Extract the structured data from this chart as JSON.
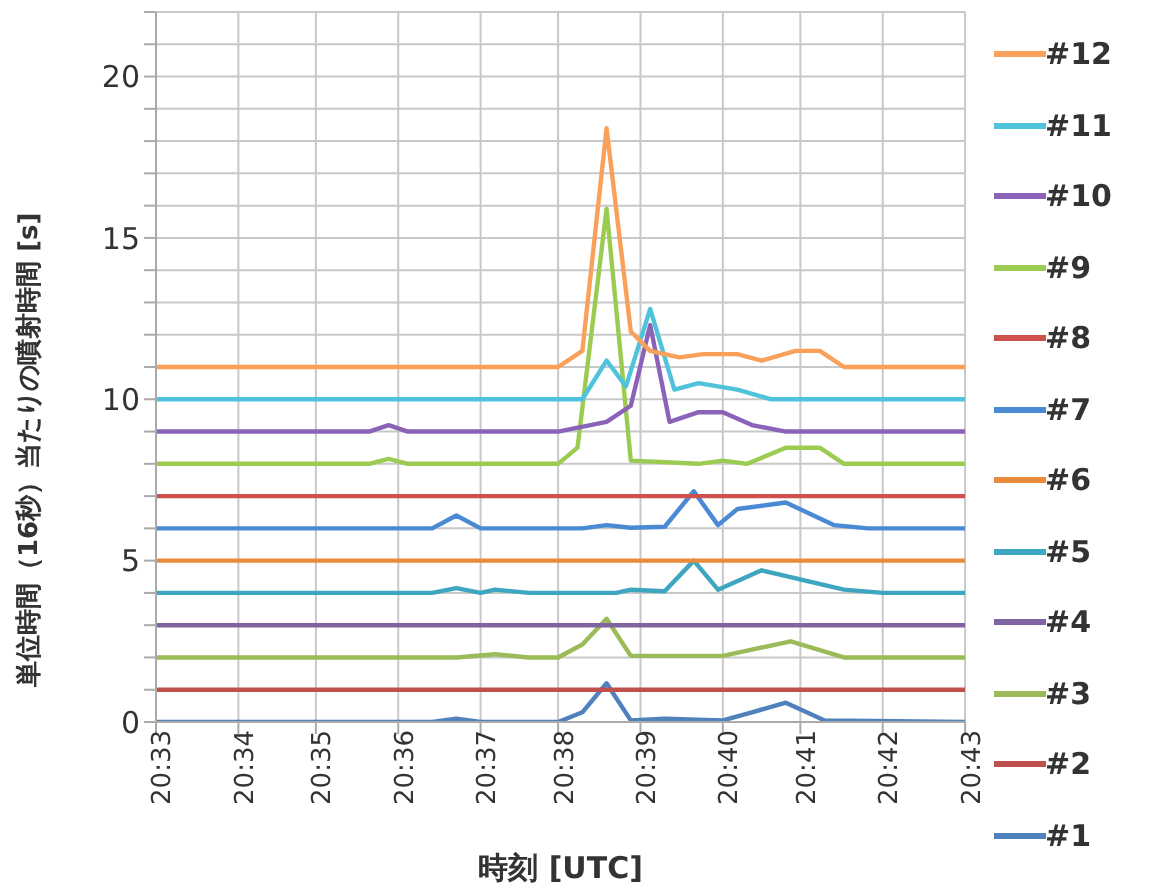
{
  "chart_data": {
    "type": "line",
    "xlabel": "時刻 [UTC]",
    "ylabel": "単位時間（16秒）当たりの噴射時間 [s]",
    "xlim": [
      20.55,
      20.717
    ],
    "xticks": [
      {
        "value": 20.55,
        "label": "20:33"
      },
      {
        "value": 20.567,
        "label": "20:34"
      },
      {
        "value": 20.583,
        "label": "20:35"
      },
      {
        "value": 20.6,
        "label": "20:36"
      },
      {
        "value": 20.617,
        "label": "20:37"
      },
      {
        "value": 20.633,
        "label": "20:38"
      },
      {
        "value": 20.65,
        "label": "20:39"
      },
      {
        "value": 20.667,
        "label": "20:40"
      },
      {
        "value": 20.683,
        "label": "20:41"
      },
      {
        "value": 20.7,
        "label": "20:42"
      },
      {
        "value": 20.717,
        "label": "20:43"
      }
    ],
    "ylim": [
      0,
      22
    ],
    "yticks": [
      0,
      {
        "value": 1,
        "label": null
      },
      {
        "value": 2,
        "label": null
      },
      {
        "value": 3,
        "label": null
      },
      {
        "value": 4,
        "label": null
      },
      5,
      {
        "value": 6,
        "label": null
      },
      {
        "value": 7,
        "label": null
      },
      {
        "value": 8,
        "label": null
      },
      {
        "value": 9,
        "label": null
      },
      10,
      {
        "value": 11,
        "label": null
      },
      {
        "value": 12,
        "label": null
      },
      {
        "value": 13,
        "label": null
      },
      {
        "value": 14,
        "label": null
      },
      15,
      {
        "value": 16,
        "label": null
      },
      {
        "value": 17,
        "label": null
      },
      {
        "value": 18,
        "label": null
      },
      {
        "value": 19,
        "label": null
      },
      20,
      {
        "value": 21,
        "label": null
      },
      {
        "value": 22,
        "label": null
      }
    ],
    "grid": true,
    "legend": "right",
    "marker": "none",
    "line_style": "solid",
    "series": [
      {
        "name": "#1",
        "color": "#4f81bd",
        "x": [
          20.55,
          20.607,
          20.612,
          20.617,
          20.633,
          20.638,
          20.643,
          20.648,
          20.655,
          20.667,
          20.673,
          20.68,
          20.688,
          20.717
        ],
        "values": [
          0,
          0,
          0.1,
          0,
          0,
          0.3,
          1.2,
          0.05,
          0.1,
          0.05,
          0.3,
          0.6,
          0.05,
          0
        ]
      },
      {
        "name": "#2",
        "color": "#c0504d",
        "x": [
          20.55,
          20.717
        ],
        "values": [
          1,
          1
        ]
      },
      {
        "name": "#3",
        "color": "#9bbb59",
        "x": [
          20.55,
          20.612,
          20.62,
          20.627,
          20.633,
          20.638,
          20.643,
          20.648,
          20.667,
          20.681,
          20.692,
          20.717
        ],
        "values": [
          2,
          2,
          2.1,
          2,
          2,
          2.4,
          3.2,
          2.05,
          2.05,
          2.5,
          2,
          2
        ]
      },
      {
        "name": "#4",
        "color": "#8064a2",
        "x": [
          20.55,
          20.717
        ],
        "values": [
          3,
          3
        ]
      },
      {
        "name": "#5",
        "color": "#3ea6c0",
        "x": [
          20.55,
          20.607,
          20.612,
          20.617,
          20.62,
          20.627,
          20.645,
          20.648,
          20.655,
          20.661,
          20.666,
          20.675,
          20.692,
          20.7,
          20.717
        ],
        "values": [
          4,
          4,
          4.15,
          4,
          4.1,
          4,
          4,
          4.1,
          4.05,
          5,
          4.1,
          4.7,
          4.1,
          4,
          4
        ]
      },
      {
        "name": "#6",
        "color": "#e98b3c",
        "x": [
          20.55,
          20.717
        ],
        "values": [
          5,
          5
        ]
      },
      {
        "name": "#7",
        "color": "#4a8ad4",
        "x": [
          20.55,
          20.607,
          20.612,
          20.617,
          20.638,
          20.643,
          20.648,
          20.655,
          20.661,
          20.666,
          20.67,
          20.68,
          20.69,
          20.697,
          20.717
        ],
        "values": [
          6,
          6,
          6.4,
          6,
          6,
          6.1,
          6.02,
          6.05,
          7.15,
          6.1,
          6.6,
          6.8,
          6.1,
          6,
          6
        ]
      },
      {
        "name": "#8",
        "color": "#d0504d",
        "x": [
          20.55,
          20.717
        ],
        "values": [
          7,
          7
        ]
      },
      {
        "name": "#9",
        "color": "#9ccb52",
        "x": [
          20.55,
          20.594,
          20.598,
          20.602,
          20.633,
          20.637,
          20.643,
          20.648,
          20.662,
          20.667,
          20.672,
          20.68,
          20.687,
          20.692,
          20.717
        ],
        "values": [
          8,
          8,
          8.15,
          8,
          8,
          8.5,
          15.9,
          8.1,
          8,
          8.1,
          8,
          8.5,
          8.5,
          8,
          8
        ]
      },
      {
        "name": "#10",
        "color": "#8a63b8",
        "x": [
          20.55,
          20.594,
          20.598,
          20.602,
          20.633,
          20.643,
          20.648,
          20.652,
          20.656,
          20.662,
          20.667,
          20.673,
          20.68,
          20.717
        ],
        "values": [
          9,
          9,
          9.2,
          9,
          9,
          9.3,
          9.8,
          12.3,
          9.3,
          9.6,
          9.6,
          9.2,
          9,
          9
        ]
      },
      {
        "name": "#11",
        "color": "#4fc3dc",
        "x": [
          20.55,
          20.638,
          20.643,
          20.647,
          20.652,
          20.657,
          20.662,
          20.67,
          20.677,
          20.717
        ],
        "values": [
          10,
          10,
          11.2,
          10.4,
          12.8,
          10.3,
          10.5,
          10.3,
          10,
          10
        ]
      },
      {
        "name": "#12",
        "color": "#f9a05a",
        "x": [
          20.55,
          20.633,
          20.638,
          20.643,
          20.648,
          20.652,
          20.658,
          20.663,
          20.67,
          20.675,
          20.682,
          20.687,
          20.692,
          20.717
        ],
        "values": [
          11,
          11,
          11.5,
          18.4,
          12.1,
          11.5,
          11.3,
          11.4,
          11.4,
          11.2,
          11.5,
          11.5,
          11,
          11
        ]
      }
    ]
  }
}
